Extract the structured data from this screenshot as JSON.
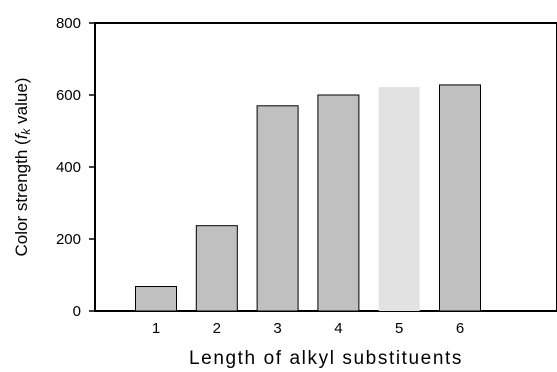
{
  "chart_data": {
    "type": "bar",
    "categories": [
      "1",
      "2",
      "3",
      "4",
      "5",
      "6"
    ],
    "values": [
      68,
      237,
      570,
      600,
      622,
      628
    ],
    "bar_colors": [
      "#c0c0c0",
      "#c0c0c0",
      "#c0c0c0",
      "#c0c0c0",
      "#e2e2e2",
      "#c0c0c0"
    ],
    "bar_outline": [
      "#000000",
      "#000000",
      "#000000",
      "#000000",
      "none",
      "#000000"
    ],
    "xlabel": "Length of alkyl substituents",
    "ylabel": {
      "prefix": "Color strength (",
      "f": "f",
      "k": "k",
      "suffix": " value)"
    },
    "ylim": [
      0,
      800
    ],
    "yticks": [
      0,
      200,
      400,
      600,
      800
    ],
    "grid": false,
    "legend": false
  }
}
